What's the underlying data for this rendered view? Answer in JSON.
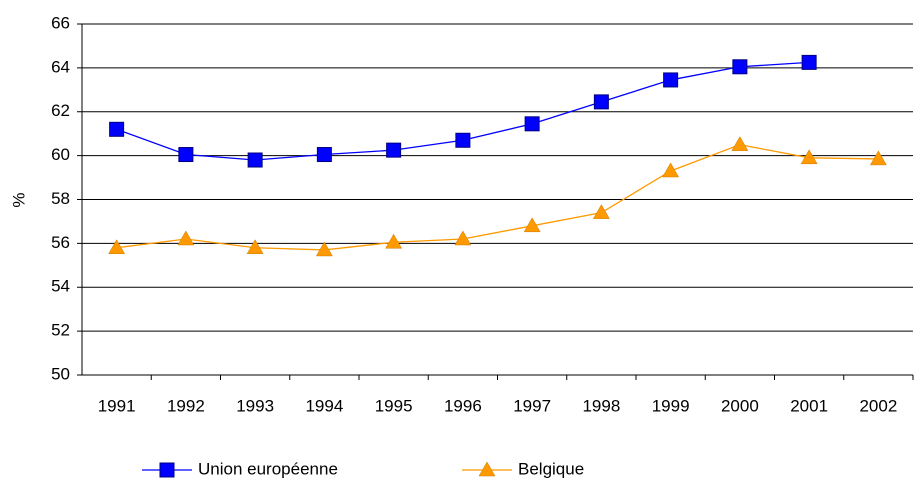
{
  "chart_data": {
    "type": "line",
    "ylabel": "%",
    "categories": [
      "1991",
      "1992",
      "1993",
      "1994",
      "1995",
      "1996",
      "1997",
      "1998",
      "1999",
      "2000",
      "2001",
      "2002"
    ],
    "series": [
      {
        "name": "Union européenne",
        "color": "#0000ff",
        "marker": "square",
        "values": [
          61.2,
          60.05,
          59.8,
          60.05,
          60.25,
          60.7,
          61.45,
          62.45,
          63.45,
          64.05,
          64.25,
          null
        ]
      },
      {
        "name": "Belgique",
        "color": "#ff9900",
        "marker": "triangle",
        "values": [
          55.8,
          56.2,
          55.8,
          55.7,
          56.05,
          56.2,
          56.8,
          57.4,
          59.3,
          60.5,
          59.9,
          59.85
        ]
      }
    ],
    "ylim": [
      50,
      66
    ],
    "yticks": [
      50,
      52,
      54,
      56,
      58,
      60,
      62,
      64,
      66
    ],
    "grid": true,
    "legend": "bottom"
  }
}
